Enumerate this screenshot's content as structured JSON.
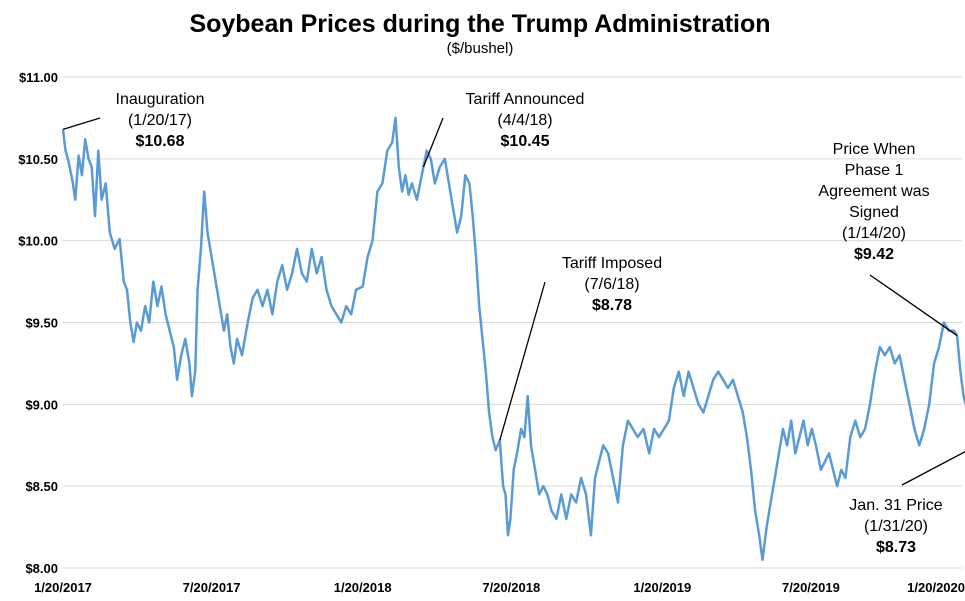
{
  "chart_data": {
    "type": "line",
    "title": "Soybean Prices during the Trump Administration",
    "subtitle": "($/bushel)",
    "xlabel": "",
    "ylabel": "",
    "ylim": [
      8.0,
      11.0
    ],
    "xlim": [
      "2017-01-20",
      "2020-01-20"
    ],
    "grid": true,
    "line_color": "#5b9bd5",
    "y_ticks": [
      "$8.00",
      "$8.50",
      "$9.00",
      "$9.50",
      "$10.00",
      "$10.50",
      "$11.00"
    ],
    "y_tick_values": [
      8.0,
      8.5,
      9.0,
      9.5,
      10.0,
      10.5,
      11.0
    ],
    "x_ticks": [
      "1/20/2017",
      "7/20/2017",
      "1/20/2018",
      "7/20/2018",
      "1/20/2019",
      "7/20/2019",
      "1/20/2020"
    ],
    "x_tick_values": [
      "2017-01-20",
      "2017-07-20",
      "2018-01-20",
      "2018-07-20",
      "2019-01-20",
      "2019-07-20",
      "2020-01-20"
    ],
    "series": [
      {
        "points": [
          [
            "2017-01-20",
            10.68
          ],
          [
            "2017-01-23",
            10.55
          ],
          [
            "2017-01-27",
            10.48
          ],
          [
            "2017-02-01",
            10.35
          ],
          [
            "2017-02-04",
            10.25
          ],
          [
            "2017-02-08",
            10.52
          ],
          [
            "2017-02-12",
            10.4
          ],
          [
            "2017-02-16",
            10.62
          ],
          [
            "2017-02-20",
            10.5
          ],
          [
            "2017-02-24",
            10.45
          ],
          [
            "2017-02-28",
            10.15
          ],
          [
            "2017-03-04",
            10.55
          ],
          [
            "2017-03-08",
            10.25
          ],
          [
            "2017-03-13",
            10.35
          ],
          [
            "2017-03-18",
            10.05
          ],
          [
            "2017-03-24",
            9.95
          ],
          [
            "2017-03-30",
            10.01
          ],
          [
            "2017-04-04",
            9.75
          ],
          [
            "2017-04-08",
            9.7
          ],
          [
            "2017-04-12",
            9.5
          ],
          [
            "2017-04-16",
            9.38
          ],
          [
            "2017-04-20",
            9.5
          ],
          [
            "2017-04-25",
            9.45
          ],
          [
            "2017-04-30",
            9.6
          ],
          [
            "2017-05-05",
            9.5
          ],
          [
            "2017-05-10",
            9.75
          ],
          [
            "2017-05-15",
            9.6
          ],
          [
            "2017-05-20",
            9.72
          ],
          [
            "2017-05-25",
            9.55
          ],
          [
            "2017-05-30",
            9.45
          ],
          [
            "2017-06-04",
            9.35
          ],
          [
            "2017-06-08",
            9.15
          ],
          [
            "2017-06-13",
            9.3
          ],
          [
            "2017-06-18",
            9.4
          ],
          [
            "2017-06-23",
            9.25
          ],
          [
            "2017-06-26",
            9.05
          ],
          [
            "2017-06-30",
            9.2
          ],
          [
            "2017-07-03",
            9.7
          ],
          [
            "2017-07-07",
            9.95
          ],
          [
            "2017-07-11",
            10.3
          ],
          [
            "2017-07-15",
            10.05
          ],
          [
            "2017-07-20",
            9.9
          ],
          [
            "2017-07-25",
            9.75
          ],
          [
            "2017-07-30",
            9.6
          ],
          [
            "2017-08-04",
            9.45
          ],
          [
            "2017-08-08",
            9.55
          ],
          [
            "2017-08-12",
            9.35
          ],
          [
            "2017-08-16",
            9.25
          ],
          [
            "2017-08-20",
            9.4
          ],
          [
            "2017-08-26",
            9.3
          ],
          [
            "2017-09-02",
            9.5
          ],
          [
            "2017-09-08",
            9.65
          ],
          [
            "2017-09-14",
            9.7
          ],
          [
            "2017-09-20",
            9.6
          ],
          [
            "2017-09-26",
            9.7
          ],
          [
            "2017-10-02",
            9.55
          ],
          [
            "2017-10-08",
            9.75
          ],
          [
            "2017-10-14",
            9.85
          ],
          [
            "2017-10-20",
            9.7
          ],
          [
            "2017-10-26",
            9.8
          ],
          [
            "2017-11-01",
            9.95
          ],
          [
            "2017-11-07",
            9.8
          ],
          [
            "2017-11-13",
            9.75
          ],
          [
            "2017-11-19",
            9.95
          ],
          [
            "2017-11-25",
            9.8
          ],
          [
            "2017-12-01",
            9.9
          ],
          [
            "2017-12-07",
            9.7
          ],
          [
            "2017-12-13",
            9.6
          ],
          [
            "2017-12-19",
            9.55
          ],
          [
            "2017-12-25",
            9.5
          ],
          [
            "2017-12-31",
            9.6
          ],
          [
            "2018-01-06",
            9.55
          ],
          [
            "2018-01-12",
            9.7
          ],
          [
            "2018-01-20",
            9.72
          ],
          [
            "2018-01-26",
            9.9
          ],
          [
            "2018-02-01",
            10.0
          ],
          [
            "2018-02-07",
            10.3
          ],
          [
            "2018-02-13",
            10.35
          ],
          [
            "2018-02-19",
            10.55
          ],
          [
            "2018-02-25",
            10.6
          ],
          [
            "2018-03-01",
            10.75
          ],
          [
            "2018-03-05",
            10.45
          ],
          [
            "2018-03-09",
            10.3
          ],
          [
            "2018-03-13",
            10.4
          ],
          [
            "2018-03-17",
            10.28
          ],
          [
            "2018-03-21",
            10.35
          ],
          [
            "2018-03-27",
            10.25
          ],
          [
            "2018-04-04",
            10.45
          ],
          [
            "2018-04-08",
            10.55
          ],
          [
            "2018-04-13",
            10.5
          ],
          [
            "2018-04-18",
            10.35
          ],
          [
            "2018-04-24",
            10.45
          ],
          [
            "2018-04-30",
            10.5
          ],
          [
            "2018-05-05",
            10.35
          ],
          [
            "2018-05-10",
            10.2
          ],
          [
            "2018-05-15",
            10.05
          ],
          [
            "2018-05-20",
            10.15
          ],
          [
            "2018-05-25",
            10.4
          ],
          [
            "2018-05-30",
            10.35
          ],
          [
            "2018-06-03",
            10.15
          ],
          [
            "2018-06-07",
            9.9
          ],
          [
            "2018-06-11",
            9.6
          ],
          [
            "2018-06-15",
            9.4
          ],
          [
            "2018-06-19",
            9.2
          ],
          [
            "2018-06-23",
            8.95
          ],
          [
            "2018-06-27",
            8.8
          ],
          [
            "2018-07-01",
            8.72
          ],
          [
            "2018-07-06",
            8.78
          ],
          [
            "2018-07-10",
            8.5
          ],
          [
            "2018-07-13",
            8.45
          ],
          [
            "2018-07-16",
            8.2
          ],
          [
            "2018-07-19",
            8.3
          ],
          [
            "2018-07-23",
            8.6
          ],
          [
            "2018-07-27",
            8.7
          ],
          [
            "2018-08-01",
            8.85
          ],
          [
            "2018-08-05",
            8.8
          ],
          [
            "2018-08-09",
            9.05
          ],
          [
            "2018-08-13",
            8.75
          ],
          [
            "2018-08-18",
            8.6
          ],
          [
            "2018-08-23",
            8.45
          ],
          [
            "2018-08-28",
            8.5
          ],
          [
            "2018-09-02",
            8.45
          ],
          [
            "2018-09-07",
            8.35
          ],
          [
            "2018-09-13",
            8.3
          ],
          [
            "2018-09-19",
            8.45
          ],
          [
            "2018-09-25",
            8.3
          ],
          [
            "2018-10-01",
            8.45
          ],
          [
            "2018-10-07",
            8.4
          ],
          [
            "2018-10-13",
            8.55
          ],
          [
            "2018-10-19",
            8.45
          ],
          [
            "2018-10-25",
            8.2
          ],
          [
            "2018-10-30",
            8.55
          ],
          [
            "2018-11-04",
            8.65
          ],
          [
            "2018-11-09",
            8.75
          ],
          [
            "2018-11-15",
            8.7
          ],
          [
            "2018-11-21",
            8.55
          ],
          [
            "2018-11-27",
            8.4
          ],
          [
            "2018-12-03",
            8.75
          ],
          [
            "2018-12-09",
            8.9
          ],
          [
            "2018-12-15",
            8.85
          ],
          [
            "2018-12-21",
            8.8
          ],
          [
            "2018-12-28",
            8.85
          ],
          [
            "2019-01-04",
            8.7
          ],
          [
            "2019-01-10",
            8.85
          ],
          [
            "2019-01-16",
            8.8
          ],
          [
            "2019-01-22",
            8.85
          ],
          [
            "2019-01-28",
            8.9
          ],
          [
            "2019-02-03",
            9.1
          ],
          [
            "2019-02-09",
            9.2
          ],
          [
            "2019-02-15",
            9.05
          ],
          [
            "2019-02-21",
            9.2
          ],
          [
            "2019-02-27",
            9.1
          ],
          [
            "2019-03-05",
            9.0
          ],
          [
            "2019-03-11",
            8.95
          ],
          [
            "2019-03-17",
            9.05
          ],
          [
            "2019-03-23",
            9.15
          ],
          [
            "2019-03-29",
            9.2
          ],
          [
            "2019-04-04",
            9.15
          ],
          [
            "2019-04-10",
            9.1
          ],
          [
            "2019-04-16",
            9.15
          ],
          [
            "2019-04-22",
            9.05
          ],
          [
            "2019-04-28",
            8.95
          ],
          [
            "2019-05-03",
            8.8
          ],
          [
            "2019-05-08",
            8.6
          ],
          [
            "2019-05-13",
            8.35
          ],
          [
            "2019-05-18",
            8.2
          ],
          [
            "2019-05-22",
            8.05
          ],
          [
            "2019-05-27",
            8.25
          ],
          [
            "2019-06-01",
            8.4
          ],
          [
            "2019-06-06",
            8.55
          ],
          [
            "2019-06-11",
            8.7
          ],
          [
            "2019-06-16",
            8.85
          ],
          [
            "2019-06-21",
            8.75
          ],
          [
            "2019-06-26",
            8.9
          ],
          [
            "2019-07-01",
            8.7
          ],
          [
            "2019-07-06",
            8.8
          ],
          [
            "2019-07-11",
            8.9
          ],
          [
            "2019-07-16",
            8.75
          ],
          [
            "2019-07-21",
            8.85
          ],
          [
            "2019-07-26",
            8.75
          ],
          [
            "2019-08-01",
            8.6
          ],
          [
            "2019-08-06",
            8.65
          ],
          [
            "2019-08-11",
            8.7
          ],
          [
            "2019-08-16",
            8.6
          ],
          [
            "2019-08-21",
            8.5
          ],
          [
            "2019-08-26",
            8.6
          ],
          [
            "2019-08-31",
            8.55
          ],
          [
            "2019-09-06",
            8.8
          ],
          [
            "2019-09-12",
            8.9
          ],
          [
            "2019-09-18",
            8.8
          ],
          [
            "2019-09-24",
            8.85
          ],
          [
            "2019-09-30",
            9.0
          ],
          [
            "2019-10-06",
            9.2
          ],
          [
            "2019-10-12",
            9.35
          ],
          [
            "2019-10-18",
            9.3
          ],
          [
            "2019-10-24",
            9.35
          ],
          [
            "2019-10-30",
            9.25
          ],
          [
            "2019-11-05",
            9.3
          ],
          [
            "2019-11-11",
            9.15
          ],
          [
            "2019-11-17",
            9.0
          ],
          [
            "2019-11-23",
            8.85
          ],
          [
            "2019-11-29",
            8.75
          ],
          [
            "2019-12-05",
            8.85
          ],
          [
            "2019-12-11",
            9.0
          ],
          [
            "2019-12-17",
            9.25
          ],
          [
            "2019-12-23",
            9.35
          ],
          [
            "2019-12-29",
            9.5
          ],
          [
            "2020-01-04",
            9.45
          ],
          [
            "2020-01-10",
            9.45
          ],
          [
            "2020-01-14",
            9.42
          ],
          [
            "2020-01-18",
            9.2
          ],
          [
            "2020-01-22",
            9.05
          ],
          [
            "2020-01-27",
            8.95
          ],
          [
            "2020-01-31",
            8.73
          ]
        ]
      }
    ],
    "annotations": [
      {
        "lines": [
          "Inauguration",
          "(1/20/17)"
        ],
        "value": "$10.68",
        "x": "2017-01-20",
        "y": 10.68
      },
      {
        "lines": [
          "Tariff Announced",
          "(4/4/18)"
        ],
        "value": "$10.45",
        "x": "2018-04-04",
        "y": 10.45
      },
      {
        "lines": [
          "Tariff Imposed",
          "(7/6/18)"
        ],
        "value": "$8.78",
        "x": "2018-07-06",
        "y": 8.78
      },
      {
        "lines": [
          "Price When",
          "Phase 1",
          "Agreement was",
          "Signed",
          "(1/14/20)"
        ],
        "value": "$9.42",
        "x": "2020-01-14",
        "y": 9.42
      },
      {
        "lines": [
          "Jan. 31 Price",
          "(1/31/20)"
        ],
        "value": "$8.73",
        "x": "2020-01-31",
        "y": 8.73
      }
    ]
  }
}
